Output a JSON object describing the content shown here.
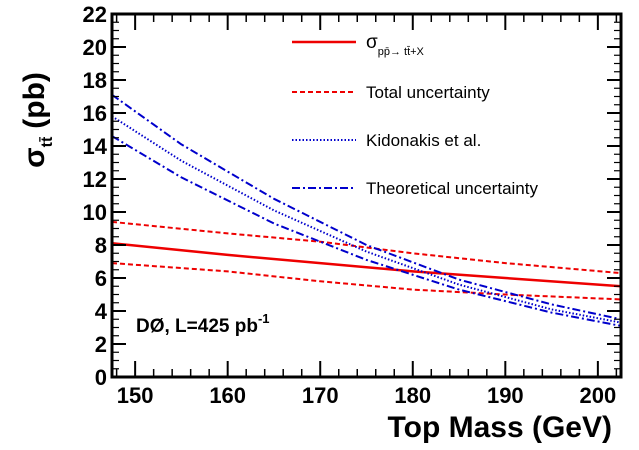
{
  "chart_data": {
    "type": "line",
    "xlabel": "Top Mass (GeV)",
    "ylabel": {
      "main": "σ",
      "sub": "tt̄",
      "unit": "(pb)"
    },
    "xlim": [
      147.5,
      202.5
    ],
    "ylim": [
      0,
      22
    ],
    "xticks": [
      150,
      160,
      170,
      180,
      190,
      200
    ],
    "yticks": [
      0,
      2,
      4,
      6,
      8,
      10,
      12,
      14,
      16,
      18,
      20,
      22
    ],
    "grid": false,
    "legend_position": "top-right",
    "annotation": {
      "text": "DØ, L=425 pb",
      "sup": "-1"
    },
    "series": [
      {
        "name": "σ_pp̄→tt̄+X",
        "legend": {
          "main": "σ",
          "sub": "pp̄→ tt̄+X"
        },
        "color": "#ee0000",
        "style": "solid",
        "x": [
          147.5,
          160,
          170,
          180,
          190,
          202.5
        ],
        "y": [
          8.1,
          7.4,
          6.9,
          6.4,
          6.0,
          5.5
        ]
      },
      {
        "name": "Total uncertainty",
        "legend": {
          "main": "Total uncertainty"
        },
        "color": "#ee0000",
        "style": "dashed",
        "x": [
          147.5,
          160,
          170,
          180,
          190,
          202.5
        ],
        "y": [
          9.4,
          8.7,
          8.2,
          7.5,
          6.9,
          6.3
        ]
      },
      {
        "name": "",
        "legend": null,
        "color": "#ee0000",
        "style": "dashed",
        "x": [
          147.5,
          160,
          170,
          180,
          190,
          202.5
        ],
        "y": [
          6.9,
          6.4,
          5.8,
          5.3,
          5.0,
          4.7
        ]
      },
      {
        "name": "Kidonakis et al.",
        "legend": {
          "main": "Kidonakis et al."
        },
        "color": "#0000cc",
        "style": "dotted",
        "x": [
          147.5,
          155,
          165,
          175,
          185,
          195,
          202.5
        ],
        "y": [
          15.8,
          13.1,
          10.1,
          7.6,
          5.6,
          4.1,
          3.3
        ]
      },
      {
        "name": "Theoretical uncertainty",
        "legend": {
          "main": "Theoretical uncertainty"
        },
        "color": "#0000cc",
        "style": "dashdot",
        "x": [
          147.5,
          155,
          165,
          175,
          185,
          195,
          202.5
        ],
        "y": [
          17.1,
          14.1,
          10.8,
          8.0,
          5.9,
          4.4,
          3.5
        ]
      },
      {
        "name": "",
        "legend": null,
        "color": "#0000cc",
        "style": "dashdot",
        "x": [
          147.5,
          155,
          165,
          175,
          185,
          195,
          202.5
        ],
        "y": [
          14.6,
          12.1,
          9.3,
          7.1,
          5.3,
          3.9,
          3.1
        ]
      }
    ]
  }
}
